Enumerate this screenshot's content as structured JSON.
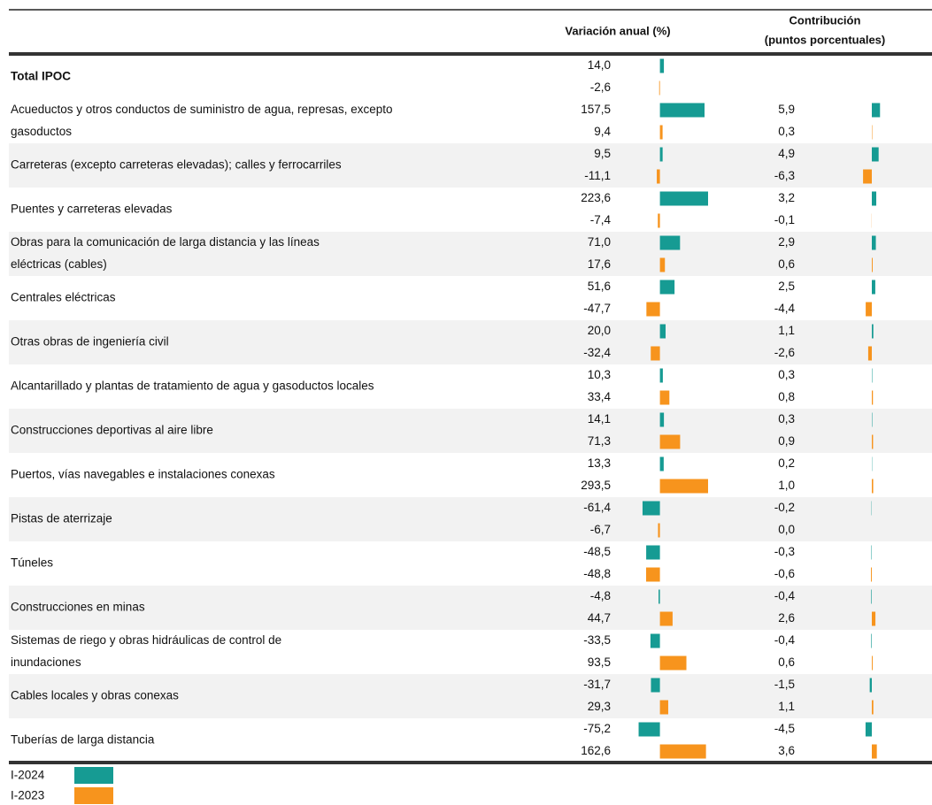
{
  "header": {
    "variation": "Variación anual (%)",
    "contribution": [
      "Contribución",
      "(puntos porcentuales)"
    ]
  },
  "scales": {
    "variation_xlim": [
      -80,
      180
    ],
    "contribution_xlim": [
      -7,
      7
    ]
  },
  "legend": [
    {
      "name": "I-2024",
      "color": "#169b93"
    },
    {
      "name": "I-2023",
      "color": "#f7941d"
    }
  ],
  "rows": [
    {
      "label": [
        "Total IPOC"
      ],
      "variation": [
        14.0,
        -2.6
      ],
      "variation_labels": [
        "14,0",
        "-2,6"
      ]
    },
    {
      "label": [
        "Acueductos y otros conductos de suministro de agua, represas, excepto",
        "gasoductos"
      ],
      "variation": [
        157.5,
        9.4
      ],
      "variation_labels": [
        "157,5",
        "9,4"
      ],
      "contribution": [
        5.9,
        0.3
      ],
      "contribution_labels": [
        "5,9",
        "0,3"
      ]
    },
    {
      "label": [
        "Carreteras (excepto carreteras elevadas); calles y ferrocarriles"
      ],
      "variation": [
        9.5,
        -11.1
      ],
      "variation_labels": [
        "9,5",
        "-11,1"
      ],
      "contribution": [
        4.9,
        -6.3
      ],
      "contribution_labels": [
        "4,9",
        "-6,3"
      ]
    },
    {
      "label": [
        "Puentes y carreteras elevadas"
      ],
      "variation": [
        223.6,
        -7.4
      ],
      "variation_labels": [
        "223,6",
        "-7,4"
      ],
      "contribution": [
        3.2,
        -0.1
      ],
      "contribution_labels": [
        "3,2",
        "-0,1"
      ]
    },
    {
      "label": [
        "Obras para la comunicación de larga distancia y las líneas",
        "eléctricas (cables)"
      ],
      "variation": [
        71.0,
        17.6
      ],
      "variation_labels": [
        "71,0",
        "17,6"
      ],
      "contribution": [
        2.9,
        0.6
      ],
      "contribution_labels": [
        "2,9",
        "0,6"
      ]
    },
    {
      "label": [
        "Centrales eléctricas"
      ],
      "variation": [
        51.6,
        -47.7
      ],
      "variation_labels": [
        "51,6",
        "-47,7"
      ],
      "contribution": [
        2.5,
        -4.4
      ],
      "contribution_labels": [
        "2,5",
        "-4,4"
      ]
    },
    {
      "label": [
        "Otras obras de ingeniería civil"
      ],
      "variation": [
        20.0,
        -32.4
      ],
      "variation_labels": [
        "20,0",
        "-32,4"
      ],
      "contribution": [
        1.1,
        -2.6
      ],
      "contribution_labels": [
        "1,1",
        "-2,6"
      ]
    },
    {
      "label": [
        "Alcantarillado y plantas de tratamiento de agua y gasoductos locales"
      ],
      "variation": [
        10.3,
        33.4
      ],
      "variation_labels": [
        "10,3",
        "33,4"
      ],
      "contribution": [
        0.3,
        0.8
      ],
      "contribution_labels": [
        "0,3",
        "0,8"
      ]
    },
    {
      "label": [
        "Construcciones deportivas al aire libre"
      ],
      "variation": [
        14.1,
        71.3
      ],
      "variation_labels": [
        "14,1",
        "71,3"
      ],
      "contribution": [
        0.3,
        0.9
      ],
      "contribution_labels": [
        "0,3",
        "0,9"
      ]
    },
    {
      "label": [
        "Puertos, vías navegables e instalaciones conexas"
      ],
      "variation": [
        13.3,
        293.5
      ],
      "variation_labels": [
        "13,3",
        "293,5"
      ],
      "contribution": [
        0.2,
        1.0
      ],
      "contribution_labels": [
        "0,2",
        "1,0"
      ]
    },
    {
      "label": [
        "Pistas de aterrizaje"
      ],
      "variation": [
        -61.4,
        -6.7
      ],
      "variation_labels": [
        "-61,4",
        "-6,7"
      ],
      "contribution": [
        -0.2,
        0.0
      ],
      "contribution_labels": [
        "-0,2",
        "0,0"
      ]
    },
    {
      "label": [
        "Túneles"
      ],
      "variation": [
        -48.5,
        -48.8
      ],
      "variation_labels": [
        "-48,5",
        "-48,8"
      ],
      "contribution": [
        -0.3,
        -0.6
      ],
      "contribution_labels": [
        "-0,3",
        "-0,6"
      ]
    },
    {
      "label": [
        "Construcciones en minas"
      ],
      "variation": [
        -4.8,
        44.7
      ],
      "variation_labels": [
        "-4,8",
        "44,7"
      ],
      "contribution": [
        -0.4,
        2.6
      ],
      "contribution_labels": [
        "-0,4",
        "2,6"
      ]
    },
    {
      "label": [
        "Sistemas de riego y obras hidráulicas de control de",
        "inundaciones"
      ],
      "variation": [
        -33.5,
        93.5
      ],
      "variation_labels": [
        "-33,5",
        "93,5"
      ],
      "contribution": [
        -0.4,
        0.6
      ],
      "contribution_labels": [
        "-0,4",
        "0,6"
      ]
    },
    {
      "label": [
        "Cables locales y obras conexas"
      ],
      "variation": [
        -31.7,
        29.3
      ],
      "variation_labels": [
        "-31,7",
        "29,3"
      ],
      "contribution": [
        -1.5,
        1.1
      ],
      "contribution_labels": [
        "-1,5",
        "1,1"
      ]
    },
    {
      "label": [
        "Tuberías de larga distancia"
      ],
      "variation": [
        -75.2,
        162.6
      ],
      "variation_labels": [
        "-75,2",
        "162,6"
      ],
      "contribution": [
        -4.5,
        3.6
      ],
      "contribution_labels": [
        "-4,5",
        "3,6"
      ]
    }
  ]
}
